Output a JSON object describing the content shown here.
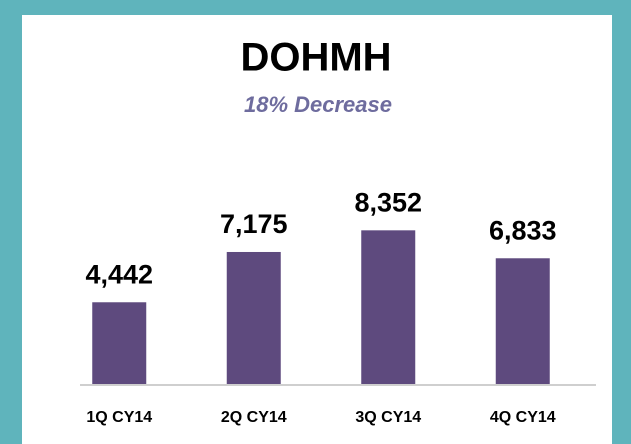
{
  "chart_data": {
    "type": "bar",
    "title": "DOHMH",
    "subtitle": "18% Decrease",
    "categories": [
      "1Q CY14",
      "2Q CY14",
      "3Q CY14",
      "4Q CY14"
    ],
    "values": [
      4442,
      7175,
      8352,
      6833
    ],
    "value_labels": [
      "4,442",
      "7,175",
      "8,352",
      "6,833"
    ],
    "color": "#5e4a7e",
    "ylim": [
      0,
      10000
    ],
    "grid": false
  }
}
